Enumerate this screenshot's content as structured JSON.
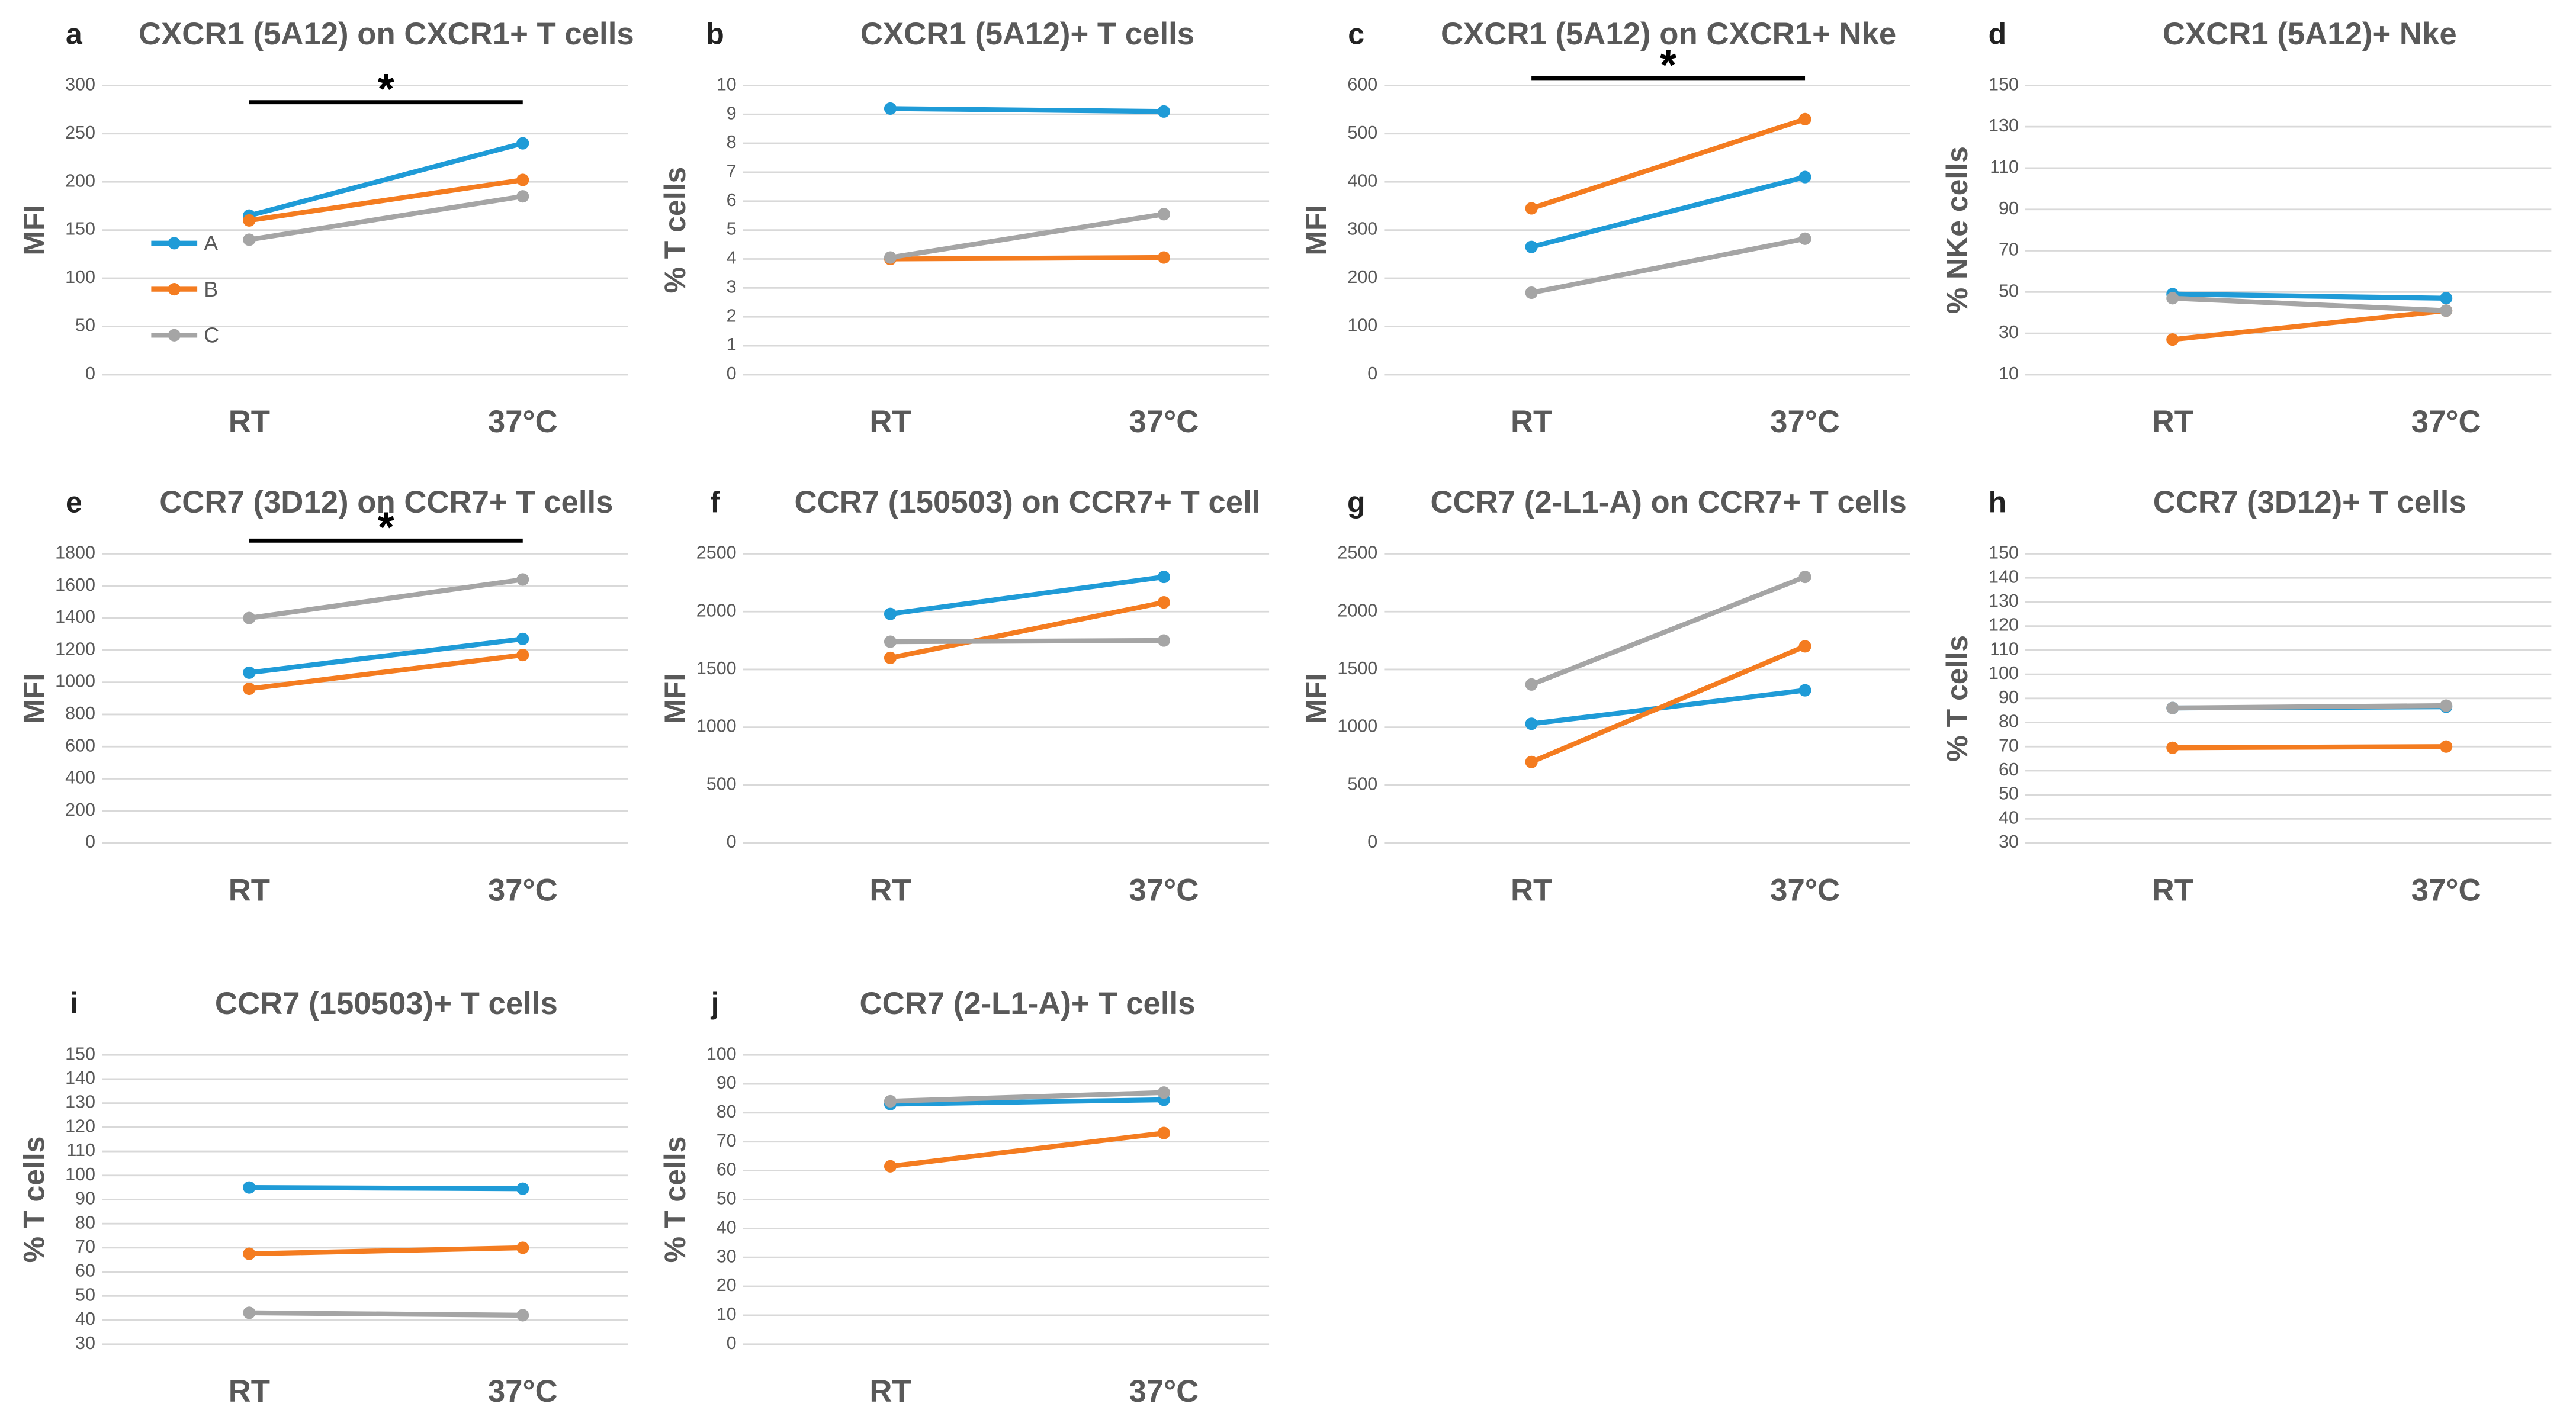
{
  "chart_data": [
    {
      "type": "line",
      "panel": "a",
      "title": "CXCR1 (5A12) on CXCR1+ T cells",
      "ylabel": "MFI",
      "categories": [
        "RT",
        "37°C"
      ],
      "ylim": [
        0,
        300
      ],
      "yticks": [
        0,
        50,
        100,
        150,
        200,
        250,
        300
      ],
      "grid": true,
      "legend": "left",
      "annotation": "*",
      "series": [
        {
          "name": "A",
          "color": "#1f9bd7",
          "values": [
            165,
            240
          ]
        },
        {
          "name": "B",
          "color": "#f47c20",
          "values": [
            160,
            202
          ]
        },
        {
          "name": "C",
          "color": "#a5a5a5",
          "values": [
            140,
            185
          ]
        }
      ]
    },
    {
      "type": "line",
      "panel": "b",
      "title": "CXCR1 (5A12)+ T cells",
      "ylabel": "% T cells",
      "categories": [
        "RT",
        "37°C"
      ],
      "ylim": [
        0,
        10
      ],
      "yticks": [
        0,
        1,
        2,
        3,
        4,
        5,
        6,
        7,
        8,
        9,
        10
      ],
      "grid": true,
      "series": [
        {
          "color": "#1f9bd7",
          "values": [
            9.2,
            9.1
          ]
        },
        {
          "color": "#f47c20",
          "values": [
            4.0,
            4.05
          ]
        },
        {
          "color": "#a5a5a5",
          "values": [
            4.05,
            5.55
          ]
        }
      ]
    },
    {
      "type": "line",
      "panel": "c",
      "title": "CXCR1 (5A12) on CXCR1+ Nke",
      "ylabel": "MFI",
      "categories": [
        "RT",
        "37°C"
      ],
      "ylim": [
        0,
        600
      ],
      "yticks": [
        0,
        100,
        200,
        300,
        400,
        500,
        600
      ],
      "grid": true,
      "annotation": "*",
      "series": [
        {
          "color": "#1f9bd7",
          "values": [
            265,
            410
          ]
        },
        {
          "color": "#f47c20",
          "values": [
            345,
            530
          ]
        },
        {
          "color": "#a5a5a5",
          "values": [
            170,
            282
          ]
        }
      ]
    },
    {
      "type": "line",
      "panel": "d",
      "title": "CXCR1 (5A12)+ Nke",
      "ylabel": "% NKe cells",
      "categories": [
        "RT",
        "37°C"
      ],
      "ylim": [
        10,
        150
      ],
      "yticks": [
        10,
        30,
        50,
        70,
        90,
        110,
        130,
        150
      ],
      "grid": true,
      "series": [
        {
          "color": "#1f9bd7",
          "values": [
            49,
            47
          ]
        },
        {
          "color": "#f47c20",
          "values": [
            27,
            41
          ]
        },
        {
          "color": "#a5a5a5",
          "values": [
            47,
            41
          ]
        }
      ]
    },
    {
      "type": "line",
      "panel": "e",
      "title": "CCR7 (3D12) on CCR7+ T cells",
      "ylabel": "MFI",
      "categories": [
        "RT",
        "37°C"
      ],
      "ylim": [
        0,
        1800
      ],
      "yticks": [
        0,
        200,
        400,
        600,
        800,
        1000,
        1200,
        1400,
        1600,
        1800
      ],
      "grid": true,
      "annotation": "*",
      "series": [
        {
          "color": "#1f9bd7",
          "values": [
            1060,
            1270
          ]
        },
        {
          "color": "#f47c20",
          "values": [
            960,
            1170
          ]
        },
        {
          "color": "#a5a5a5",
          "values": [
            1400,
            1640
          ]
        }
      ]
    },
    {
      "type": "line",
      "panel": "f",
      "title": "CCR7 (150503) on CCR7+ T cell",
      "ylabel": "MFI",
      "categories": [
        "RT",
        "37°C"
      ],
      "ylim": [
        0,
        2500
      ],
      "yticks": [
        0,
        500,
        1000,
        1500,
        2000,
        2500
      ],
      "grid": true,
      "series": [
        {
          "color": "#1f9bd7",
          "values": [
            1980,
            2300
          ]
        },
        {
          "color": "#f47c20",
          "values": [
            1600,
            2080
          ]
        },
        {
          "color": "#a5a5a5",
          "values": [
            1740,
            1750
          ]
        }
      ]
    },
    {
      "type": "line",
      "panel": "g",
      "title": "CCR7 (2-L1-A) on CCR7+ T cells",
      "ylabel": "MFI",
      "categories": [
        "RT",
        "37°C"
      ],
      "ylim": [
        0,
        2500
      ],
      "yticks": [
        0,
        500,
        1000,
        1500,
        2000,
        2500
      ],
      "grid": true,
      "series": [
        {
          "color": "#1f9bd7",
          "values": [
            1030,
            1320
          ]
        },
        {
          "color": "#f47c20",
          "values": [
            700,
            1700
          ]
        },
        {
          "color": "#a5a5a5",
          "values": [
            1370,
            2300
          ]
        }
      ]
    },
    {
      "type": "line",
      "panel": "h",
      "title": "CCR7 (3D12)+ T cells",
      "ylabel": "% T cells",
      "categories": [
        "RT",
        "37°C"
      ],
      "ylim": [
        30,
        150
      ],
      "yticks": [
        30,
        40,
        50,
        60,
        70,
        80,
        90,
        100,
        110,
        120,
        130,
        140,
        150
      ],
      "grid": true,
      "series": [
        {
          "color": "#1f9bd7",
          "values": [
            86,
            86.5
          ]
        },
        {
          "color": "#f47c20",
          "values": [
            69.5,
            70
          ]
        },
        {
          "color": "#a5a5a5",
          "values": [
            86,
            87
          ]
        }
      ]
    },
    {
      "type": "line",
      "panel": "i",
      "title": "CCR7 (150503)+ T cells",
      "ylabel": "% T cells",
      "categories": [
        "RT",
        "37°C"
      ],
      "ylim": [
        30,
        150
      ],
      "yticks": [
        30,
        40,
        50,
        60,
        70,
        80,
        90,
        100,
        110,
        120,
        130,
        140,
        150
      ],
      "grid": true,
      "series": [
        {
          "color": "#1f9bd7",
          "values": [
            95,
            94.5
          ]
        },
        {
          "color": "#f47c20",
          "values": [
            67.5,
            70
          ]
        },
        {
          "color": "#a5a5a5",
          "values": [
            43,
            42
          ]
        }
      ]
    },
    {
      "type": "line",
      "panel": "j",
      "title": "CCR7 (2-L1-A)+ T cells",
      "ylabel": "% T cells",
      "categories": [
        "RT",
        "37°C"
      ],
      "ylim": [
        0,
        100
      ],
      "yticks": [
        0,
        10,
        20,
        30,
        40,
        50,
        60,
        70,
        80,
        90,
        100
      ],
      "grid": true,
      "series": [
        {
          "color": "#1f9bd7",
          "values": [
            83,
            84.5
          ]
        },
        {
          "color": "#f47c20",
          "values": [
            61.5,
            73
          ]
        },
        {
          "color": "#a5a5a5",
          "values": [
            84,
            87
          ]
        }
      ]
    }
  ]
}
